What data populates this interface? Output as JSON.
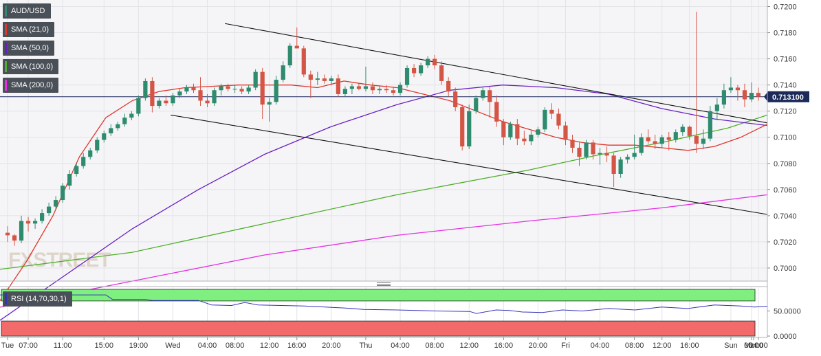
{
  "chart_data": [
    {
      "type": "candlestick",
      "symbol": "AUD/USD",
      "series": [
        {
          "name": "SMA (21,0)",
          "color": "#e0352b"
        },
        {
          "name": "SMA (50,0)",
          "color": "#6a1fc2"
        },
        {
          "name": "SMA (100,0)",
          "color": "#4fae2a"
        },
        {
          "name": "SMA (200,0)",
          "color": "#e52ee5"
        }
      ],
      "ylim": [
        0.699,
        0.7205
      ],
      "y_ticks": [
        "0.7200",
        "0.7180",
        "0.7160",
        "0.7140",
        "0.7120",
        "0.7100",
        "0.7080",
        "0.7060",
        "0.7040",
        "0.7020",
        "0.7000"
      ],
      "x_ticks": [
        "Tue",
        "07:00",
        "11:00",
        "15:00",
        "19:00",
        "Wed",
        "04:00",
        "08:00",
        "12:00",
        "16:00",
        "20:00",
        "Thu",
        "04:00",
        "08:00",
        "12:00",
        "16:00",
        "20:00",
        "Fri",
        "04:00",
        "08:00",
        "12:00",
        "16:00",
        "Sun",
        "Mon",
        "04:00",
        "08:00"
      ],
      "current_price": "0.713100",
      "current_value": 0.7131,
      "up_color": "#2e8b6e",
      "down_color": "#d45545",
      "candles_ohlc": [
        [
          0.7027,
          0.7032,
          0.702,
          0.7025
        ],
        [
          0.7025,
          0.7026,
          0.7017,
          0.7021
        ],
        [
          0.7021,
          0.704,
          0.7019,
          0.7036
        ],
        [
          0.7036,
          0.7039,
          0.7028,
          0.7034
        ],
        [
          0.7034,
          0.7038,
          0.703,
          0.7036
        ],
        [
          0.7036,
          0.7045,
          0.7034,
          0.7042
        ],
        [
          0.7042,
          0.705,
          0.704,
          0.7047
        ],
        [
          0.7047,
          0.7055,
          0.7045,
          0.7052
        ],
        [
          0.7052,
          0.7065,
          0.705,
          0.7063
        ],
        [
          0.7063,
          0.7075,
          0.706,
          0.7072
        ],
        [
          0.7072,
          0.708,
          0.707,
          0.7078
        ],
        [
          0.7078,
          0.7088,
          0.7076,
          0.7085
        ],
        [
          0.7085,
          0.7092,
          0.7083,
          0.709
        ],
        [
          0.709,
          0.71,
          0.7088,
          0.7098
        ],
        [
          0.7098,
          0.7105,
          0.7096,
          0.7103
        ],
        [
          0.7103,
          0.711,
          0.7101,
          0.7107
        ],
        [
          0.7107,
          0.7112,
          0.7105,
          0.711
        ],
        [
          0.711,
          0.7118,
          0.7108,
          0.7115
        ],
        [
          0.7115,
          0.712,
          0.7113,
          0.7118
        ],
        [
          0.7118,
          0.7132,
          0.7116,
          0.713
        ],
        [
          0.713,
          0.7145,
          0.7128,
          0.7143
        ],
        [
          0.7143,
          0.7146,
          0.7119,
          0.7124
        ],
        [
          0.7124,
          0.713,
          0.7122,
          0.7128
        ],
        [
          0.7128,
          0.7132,
          0.7124,
          0.7126
        ],
        [
          0.7126,
          0.7134,
          0.7124,
          0.7132
        ],
        [
          0.7132,
          0.7137,
          0.713,
          0.7135
        ],
        [
          0.7135,
          0.714,
          0.7133,
          0.7138
        ],
        [
          0.7138,
          0.7141,
          0.7134,
          0.7136
        ],
        [
          0.7136,
          0.7146,
          0.7124,
          0.7128
        ],
        [
          0.7128,
          0.7133,
          0.7123,
          0.7126
        ],
        [
          0.7126,
          0.7138,
          0.7124,
          0.7136
        ],
        [
          0.7136,
          0.7141,
          0.7132,
          0.7139
        ],
        [
          0.7139,
          0.7141,
          0.7135,
          0.7137
        ],
        [
          0.7137,
          0.714,
          0.7134,
          0.7137
        ],
        [
          0.7137,
          0.7139,
          0.7133,
          0.7135
        ],
        [
          0.7135,
          0.714,
          0.7133,
          0.7138
        ],
        [
          0.7138,
          0.7152,
          0.7136,
          0.715
        ],
        [
          0.715,
          0.7153,
          0.7114,
          0.7125
        ],
        [
          0.7125,
          0.713,
          0.7112,
          0.7127
        ],
        [
          0.7127,
          0.7147,
          0.7125,
          0.7144
        ],
        [
          0.7144,
          0.7158,
          0.7142,
          0.7155
        ],
        [
          0.7155,
          0.7172,
          0.7153,
          0.717
        ],
        [
          0.717,
          0.7184,
          0.7168,
          0.7168
        ],
        [
          0.7168,
          0.717,
          0.7146,
          0.7148
        ],
        [
          0.7148,
          0.7151,
          0.713,
          0.7144
        ],
        [
          0.7144,
          0.715,
          0.714,
          0.7145
        ],
        [
          0.7145,
          0.7148,
          0.7141,
          0.7143
        ],
        [
          0.7143,
          0.7147,
          0.714,
          0.7145
        ],
        [
          0.7145,
          0.7148,
          0.7131,
          0.7133
        ],
        [
          0.7133,
          0.7139,
          0.7131,
          0.7137
        ],
        [
          0.7137,
          0.7141,
          0.7133,
          0.7139
        ],
        [
          0.7139,
          0.7141,
          0.7136,
          0.7137
        ],
        [
          0.7137,
          0.7154,
          0.7135,
          0.7139
        ],
        [
          0.7139,
          0.7142,
          0.7133,
          0.7136
        ],
        [
          0.7136,
          0.7139,
          0.7133,
          0.7137
        ],
        [
          0.7137,
          0.714,
          0.7134,
          0.7136
        ],
        [
          0.7136,
          0.7138,
          0.7132,
          0.7134
        ],
        [
          0.7134,
          0.7142,
          0.7132,
          0.714
        ],
        [
          0.714,
          0.7155,
          0.7138,
          0.7153
        ],
        [
          0.7153,
          0.7156,
          0.7146,
          0.7149
        ],
        [
          0.7149,
          0.7157,
          0.7147,
          0.7155
        ],
        [
          0.7155,
          0.7162,
          0.7153,
          0.716
        ],
        [
          0.716,
          0.7163,
          0.7152,
          0.7155
        ],
        [
          0.7155,
          0.7158,
          0.714,
          0.7143
        ],
        [
          0.7143,
          0.7146,
          0.7131,
          0.7135
        ],
        [
          0.7135,
          0.7138,
          0.712,
          0.7123
        ],
        [
          0.7123,
          0.7125,
          0.709,
          0.7093
        ],
        [
          0.7093,
          0.7125,
          0.7091,
          0.712
        ],
        [
          0.712,
          0.7132,
          0.7118,
          0.713
        ],
        [
          0.713,
          0.7138,
          0.7128,
          0.7136
        ],
        [
          0.7136,
          0.7139,
          0.7115,
          0.7127
        ],
        [
          0.7127,
          0.7132,
          0.7108,
          0.7112
        ],
        [
          0.7112,
          0.7114,
          0.7094,
          0.71
        ],
        [
          0.71,
          0.7112,
          0.7098,
          0.711
        ],
        [
          0.711,
          0.7114,
          0.7094,
          0.7099
        ],
        [
          0.7099,
          0.7105,
          0.7094,
          0.7097
        ],
        [
          0.7097,
          0.7105,
          0.7094,
          0.7102
        ],
        [
          0.7102,
          0.7108,
          0.71,
          0.7106
        ],
        [
          0.7106,
          0.7123,
          0.7104,
          0.7121
        ],
        [
          0.7121,
          0.7126,
          0.7114,
          0.7118
        ],
        [
          0.7118,
          0.7122,
          0.7106,
          0.7109
        ],
        [
          0.7109,
          0.7112,
          0.7094,
          0.7098
        ],
        [
          0.7098,
          0.7102,
          0.7088,
          0.7092
        ],
        [
          0.7092,
          0.7096,
          0.7078,
          0.7085
        ],
        [
          0.7085,
          0.7098,
          0.7083,
          0.7096
        ],
        [
          0.7096,
          0.7098,
          0.7083,
          0.7087
        ],
        [
          0.7087,
          0.7092,
          0.7079,
          0.7088
        ],
        [
          0.7088,
          0.7093,
          0.7081,
          0.7086
        ],
        [
          0.7086,
          0.7088,
          0.7062,
          0.7072
        ],
        [
          0.7072,
          0.7085,
          0.7069,
          0.7083
        ],
        [
          0.7083,
          0.7087,
          0.708,
          0.7085
        ],
        [
          0.7085,
          0.7102,
          0.7083,
          0.7088
        ],
        [
          0.7088,
          0.7103,
          0.7086,
          0.71
        ],
        [
          0.71,
          0.7106,
          0.7095,
          0.7097
        ],
        [
          0.7097,
          0.7102,
          0.7091,
          0.7095
        ],
        [
          0.7095,
          0.7102,
          0.7092,
          0.71
        ],
        [
          0.71,
          0.7104,
          0.709,
          0.7098
        ],
        [
          0.7098,
          0.7106,
          0.7096,
          0.7104
        ],
        [
          0.7104,
          0.711,
          0.7101,
          0.7108
        ],
        [
          0.7108,
          0.7109,
          0.7098,
          0.7101
        ],
        [
          0.7101,
          0.7196,
          0.7088,
          0.7095
        ],
        [
          0.7095,
          0.7106,
          0.7091,
          0.7099
        ],
        [
          0.7099,
          0.7124,
          0.7097,
          0.712
        ],
        [
          0.712,
          0.713,
          0.7113,
          0.7125
        ],
        [
          0.7125,
          0.7141,
          0.7122,
          0.7136
        ],
        [
          0.7136,
          0.7146,
          0.7134,
          0.7138
        ],
        [
          0.7138,
          0.714,
          0.7128,
          0.7136
        ],
        [
          0.7136,
          0.7141,
          0.7123,
          0.7129
        ],
        [
          0.7129,
          0.7142,
          0.7127,
          0.7134
        ],
        [
          0.7134,
          0.7138,
          0.7128,
          0.7131
        ]
      ],
      "sma_21": [
        [
          0,
          0.6975
        ],
        [
          20,
          0.7005
        ],
        [
          40,
          0.704
        ],
        [
          60,
          0.7085
        ],
        [
          80,
          0.7115
        ],
        [
          100,
          0.7128
        ],
        [
          120,
          0.7135
        ],
        [
          140,
          0.7138
        ],
        [
          160,
          0.7139
        ],
        [
          180,
          0.714
        ],
        [
          200,
          0.714
        ],
        [
          220,
          0.714
        ],
        [
          240,
          0.7138
        ],
        [
          260,
          0.7143
        ],
        [
          280,
          0.714
        ],
        [
          300,
          0.7138
        ],
        [
          320,
          0.7133
        ],
        [
          340,
          0.7128
        ],
        [
          360,
          0.712
        ],
        [
          380,
          0.7112
        ],
        [
          400,
          0.7106
        ],
        [
          420,
          0.71
        ],
        [
          440,
          0.7096
        ],
        [
          460,
          0.7094
        ],
        [
          480,
          0.7094
        ],
        [
          500,
          0.7092
        ],
        [
          520,
          0.709
        ],
        [
          540,
          0.7093
        ],
        [
          560,
          0.71
        ],
        [
          580,
          0.711
        ]
      ],
      "sma_50": [
        [
          0,
          0.696
        ],
        [
          50,
          0.6995
        ],
        [
          100,
          0.703
        ],
        [
          150,
          0.706
        ],
        [
          200,
          0.7087
        ],
        [
          250,
          0.7108
        ],
        [
          300,
          0.7125
        ],
        [
          340,
          0.7136
        ],
        [
          380,
          0.714
        ],
        [
          420,
          0.7138
        ],
        [
          460,
          0.7133
        ],
        [
          500,
          0.7122
        ],
        [
          540,
          0.7114
        ],
        [
          580,
          0.7109
        ]
      ],
      "sma_100": [
        [
          0,
          0.6999
        ],
        [
          100,
          0.7012
        ],
        [
          200,
          0.7034
        ],
        [
          300,
          0.7056
        ],
        [
          400,
          0.7075
        ],
        [
          450,
          0.7086
        ],
        [
          500,
          0.7096
        ],
        [
          550,
          0.7107
        ],
        [
          580,
          0.7117
        ]
      ],
      "sma_200": [
        [
          0,
          0.697
        ],
        [
          100,
          0.699
        ],
        [
          200,
          0.701
        ],
        [
          300,
          0.7025
        ],
        [
          400,
          0.7036
        ],
        [
          500,
          0.7046
        ],
        [
          580,
          0.7056
        ]
      ],
      "trendlines": [
        {
          "from": [
            170,
            0.7187
          ],
          "to": [
            580,
            0.7111
          ]
        },
        {
          "from": [
            129,
            0.7117
          ],
          "to": [
            580,
            0.7041
          ]
        }
      ],
      "watermark": "FXSTREET"
    },
    {
      "type": "line",
      "series": [
        {
          "name": "RSI (14,70,30,1)",
          "color": "#3333bb"
        }
      ],
      "overbought_label": "",
      "oversold_label": "",
      "y_ticks": [
        "50.0000",
        "0.0000"
      ],
      "levels": [
        70,
        30
      ],
      "ylim": [
        0,
        100
      ],
      "values": [
        [
          0,
          82
        ],
        [
          80,
          82
        ],
        [
          85,
          73
        ],
        [
          110,
          73
        ],
        [
          115,
          71
        ],
        [
          150,
          71
        ],
        [
          160,
          62
        ],
        [
          175,
          61
        ],
        [
          185,
          67
        ],
        [
          195,
          62
        ],
        [
          230,
          60
        ],
        [
          260,
          56
        ],
        [
          275,
          53
        ],
        [
          300,
          52
        ],
        [
          330,
          50
        ],
        [
          355,
          49
        ],
        [
          360,
          45
        ],
        [
          375,
          52
        ],
        [
          385,
          51
        ],
        [
          395,
          48
        ],
        [
          410,
          47
        ],
        [
          425,
          52
        ],
        [
          440,
          50
        ],
        [
          460,
          55
        ],
        [
          480,
          52
        ],
        [
          500,
          58
        ],
        [
          520,
          55
        ],
        [
          540,
          62
        ],
        [
          560,
          60
        ],
        [
          570,
          58
        ],
        [
          580,
          59
        ]
      ]
    }
  ]
}
